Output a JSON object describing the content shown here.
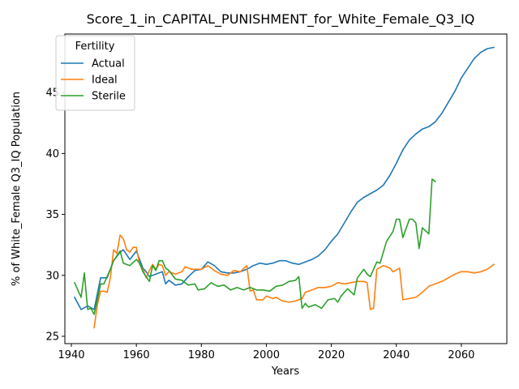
{
  "chart_data": {
    "type": "line",
    "title": "Score_1_in_CAPITAL_PUNISHMENT_for_White_Female_Q3_IQ",
    "xlabel": "Years",
    "ylabel": "% of White_Female Q3_IQ Population",
    "xlim": [
      1938,
      2074
    ],
    "ylim": [
      24.4,
      49.8
    ],
    "xticks": [
      1940,
      1960,
      1980,
      2000,
      2020,
      2040,
      2060
    ],
    "yticks": [
      25,
      30,
      35,
      40,
      45
    ],
    "grid": false,
    "legend": {
      "title": "Fertility",
      "position": "top-left"
    },
    "series": [
      {
        "name": "Actual",
        "color": "#1f77b4",
        "points": [
          [
            1941,
            28.2
          ],
          [
            1943,
            27.2
          ],
          [
            1945,
            27.5
          ],
          [
            1947,
            27.2
          ],
          [
            1949,
            29.8
          ],
          [
            1951,
            29.8
          ],
          [
            1953,
            31.2
          ],
          [
            1955,
            31.9
          ],
          [
            1956,
            32.1
          ],
          [
            1958,
            31.3
          ],
          [
            1960,
            32.0
          ],
          [
            1962,
            30.6
          ],
          [
            1963,
            30.3
          ],
          [
            1964,
            29.9
          ],
          [
            1966,
            30.1
          ],
          [
            1968,
            30.3
          ],
          [
            1969,
            29.3
          ],
          [
            1970,
            29.6
          ],
          [
            1972,
            29.2
          ],
          [
            1974,
            29.3
          ],
          [
            1976,
            29.9
          ],
          [
            1978,
            30.4
          ],
          [
            1980,
            30.5
          ],
          [
            1982,
            31.1
          ],
          [
            1984,
            30.8
          ],
          [
            1986,
            30.3
          ],
          [
            1988,
            30.2
          ],
          [
            1990,
            30.2
          ],
          [
            1992,
            30.3
          ],
          [
            1994,
            30.5
          ],
          [
            1996,
            30.8
          ],
          [
            1998,
            31.0
          ],
          [
            2000,
            30.9
          ],
          [
            2002,
            31.0
          ],
          [
            2004,
            31.2
          ],
          [
            2006,
            31.2
          ],
          [
            2008,
            31.0
          ],
          [
            2010,
            30.9
          ],
          [
            2012,
            31.1
          ],
          [
            2014,
            31.3
          ],
          [
            2016,
            31.6
          ],
          [
            2018,
            32.1
          ],
          [
            2020,
            32.8
          ],
          [
            2022,
            33.4
          ],
          [
            2024,
            34.3
          ],
          [
            2026,
            35.2
          ],
          [
            2028,
            36.0
          ],
          [
            2030,
            36.4
          ],
          [
            2032,
            36.7
          ],
          [
            2034,
            37.0
          ],
          [
            2036,
            37.4
          ],
          [
            2038,
            38.2
          ],
          [
            2040,
            39.2
          ],
          [
            2042,
            40.3
          ],
          [
            2044,
            41.1
          ],
          [
            2046,
            41.6
          ],
          [
            2048,
            42.0
          ],
          [
            2050,
            42.2
          ],
          [
            2052,
            42.6
          ],
          [
            2054,
            43.3
          ],
          [
            2056,
            44.2
          ],
          [
            2058,
            45.1
          ],
          [
            2060,
            46.2
          ],
          [
            2062,
            47.0
          ],
          [
            2064,
            47.8
          ],
          [
            2066,
            48.3
          ],
          [
            2068,
            48.6
          ],
          [
            2070,
            48.7
          ]
        ]
      },
      {
        "name": "Ideal",
        "color": "#ff7f0e",
        "points": [
          [
            1947,
            25.7
          ],
          [
            1948,
            27.6
          ],
          [
            1949,
            28.7
          ],
          [
            1950,
            28.7
          ],
          [
            1951,
            28.6
          ],
          [
            1952,
            29.8
          ],
          [
            1953,
            32.1
          ],
          [
            1954,
            31.8
          ],
          [
            1955,
            33.3
          ],
          [
            1956,
            33.0
          ],
          [
            1957,
            32.1
          ],
          [
            1958,
            31.9
          ],
          [
            1959,
            32.3
          ],
          [
            1960,
            32.3
          ],
          [
            1961,
            30.9
          ],
          [
            1962,
            30.5
          ],
          [
            1963,
            29.8
          ],
          [
            1964,
            30.4
          ],
          [
            1965,
            30.9
          ],
          [
            1966,
            30.5
          ],
          [
            1967,
            30.9
          ],
          [
            1968,
            30.8
          ],
          [
            1969,
            30.0
          ],
          [
            1970,
            30.3
          ],
          [
            1972,
            30.1
          ],
          [
            1974,
            30.3
          ],
          [
            1975,
            30.7
          ],
          [
            1977,
            30.5
          ],
          [
            1980,
            30.5
          ],
          [
            1982,
            30.8
          ],
          [
            1984,
            30.4
          ],
          [
            1986,
            30.1
          ],
          [
            1988,
            30.0
          ],
          [
            1990,
            30.4
          ],
          [
            1992,
            30.3
          ],
          [
            1994,
            30.8
          ],
          [
            1995,
            28.7
          ],
          [
            1996,
            28.8
          ],
          [
            1997,
            28.0
          ],
          [
            1999,
            28.0
          ],
          [
            2000,
            28.3
          ],
          [
            2002,
            28.1
          ],
          [
            2003,
            28.2
          ],
          [
            2005,
            27.9
          ],
          [
            2007,
            27.8
          ],
          [
            2009,
            27.9
          ],
          [
            2011,
            28.1
          ],
          [
            2012,
            28.6
          ],
          [
            2014,
            28.8
          ],
          [
            2016,
            29.0
          ],
          [
            2018,
            29.0
          ],
          [
            2020,
            29.1
          ],
          [
            2022,
            29.4
          ],
          [
            2024,
            29.3
          ],
          [
            2026,
            29.4
          ],
          [
            2028,
            29.5
          ],
          [
            2030,
            29.5
          ],
          [
            2031,
            29.4
          ],
          [
            2032,
            27.2
          ],
          [
            2033,
            27.3
          ],
          [
            2034,
            30.5
          ],
          [
            2036,
            30.8
          ],
          [
            2038,
            30.6
          ],
          [
            2039,
            30.3
          ],
          [
            2041,
            30.6
          ],
          [
            2042,
            28.0
          ],
          [
            2044,
            28.1
          ],
          [
            2046,
            28.2
          ],
          [
            2048,
            28.6
          ],
          [
            2050,
            29.1
          ],
          [
            2052,
            29.3
          ],
          [
            2054,
            29.5
          ],
          [
            2056,
            29.8
          ],
          [
            2058,
            30.1
          ],
          [
            2060,
            30.3
          ],
          [
            2062,
            30.3
          ],
          [
            2064,
            30.2
          ],
          [
            2066,
            30.3
          ],
          [
            2068,
            30.5
          ],
          [
            2070,
            30.9
          ]
        ]
      },
      {
        "name": "Sterile",
        "color": "#2ca02c",
        "points": [
          [
            1941,
            29.4
          ],
          [
            1943,
            28.2
          ],
          [
            1944,
            30.2
          ],
          [
            1945,
            27.2
          ],
          [
            1946,
            27.3
          ],
          [
            1947,
            26.8
          ],
          [
            1948,
            28.0
          ],
          [
            1949,
            29.3
          ],
          [
            1950,
            29.3
          ],
          [
            1952,
            30.5
          ],
          [
            1953,
            31.2
          ],
          [
            1955,
            32.0
          ],
          [
            1956,
            31.0
          ],
          [
            1958,
            30.8
          ],
          [
            1960,
            31.3
          ],
          [
            1961,
            31.0
          ],
          [
            1962,
            30.3
          ],
          [
            1964,
            29.5
          ],
          [
            1965,
            30.8
          ],
          [
            1966,
            30.4
          ],
          [
            1967,
            31.2
          ],
          [
            1968,
            31.2
          ],
          [
            1969,
            30.6
          ],
          [
            1970,
            30.4
          ],
          [
            1972,
            29.7
          ],
          [
            1974,
            29.6
          ],
          [
            1976,
            29.2
          ],
          [
            1978,
            29.3
          ],
          [
            1979,
            28.8
          ],
          [
            1981,
            28.9
          ],
          [
            1983,
            29.4
          ],
          [
            1985,
            29.1
          ],
          [
            1987,
            29.2
          ],
          [
            1989,
            28.8
          ],
          [
            1991,
            29.0
          ],
          [
            1993,
            28.8
          ],
          [
            1995,
            29.0
          ],
          [
            1997,
            28.8
          ],
          [
            1999,
            28.8
          ],
          [
            2001,
            28.7
          ],
          [
            2003,
            29.1
          ],
          [
            2005,
            29.2
          ],
          [
            2007,
            29.5
          ],
          [
            2009,
            29.6
          ],
          [
            2010,
            29.9
          ],
          [
            2011,
            27.3
          ],
          [
            2012,
            27.7
          ],
          [
            2013,
            27.4
          ],
          [
            2015,
            27.6
          ],
          [
            2017,
            27.3
          ],
          [
            2019,
            28.0
          ],
          [
            2021,
            28.1
          ],
          [
            2022,
            27.8
          ],
          [
            2023,
            28.3
          ],
          [
            2025,
            28.9
          ],
          [
            2027,
            28.4
          ],
          [
            2028,
            29.8
          ],
          [
            2030,
            30.5
          ],
          [
            2031,
            30.1
          ],
          [
            2032,
            29.9
          ],
          [
            2034,
            31.1
          ],
          [
            2035,
            31.0
          ],
          [
            2037,
            32.8
          ],
          [
            2039,
            33.6
          ],
          [
            2040,
            34.6
          ],
          [
            2041,
            34.6
          ],
          [
            2042,
            33.1
          ],
          [
            2044,
            34.6
          ],
          [
            2045,
            34.6
          ],
          [
            2046,
            34.3
          ],
          [
            2047,
            32.2
          ],
          [
            2048,
            33.9
          ],
          [
            2050,
            33.4
          ],
          [
            2051,
            37.9
          ],
          [
            2052,
            37.7
          ]
        ]
      }
    ]
  }
}
